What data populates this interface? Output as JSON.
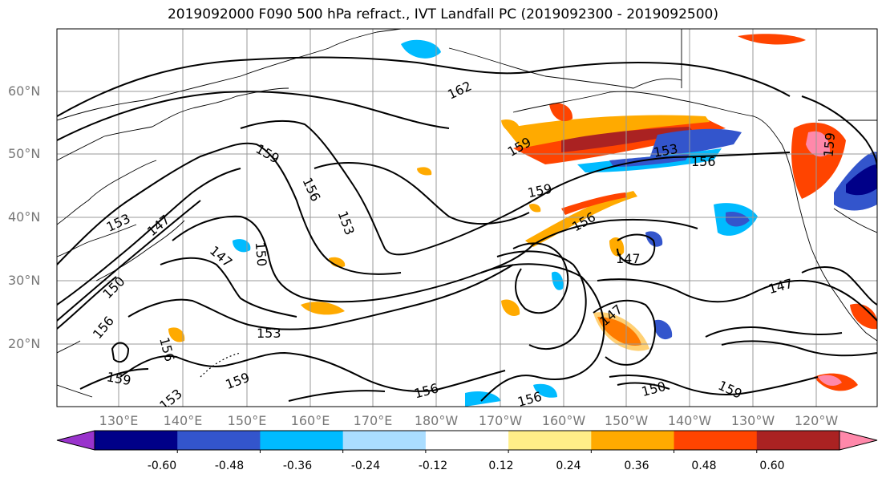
{
  "title": "2019092000 F090 500 hPa refract., IVT Landfall PC (2019092300 - 2019092500)",
  "lat_ticks": [
    "60°N",
    "50°N",
    "40°N",
    "30°N",
    "20°N"
  ],
  "lon_ticks": [
    "130°E",
    "140°E",
    "150°E",
    "160°E",
    "170°E",
    "180°W",
    "170°W",
    "160°W",
    "150°W",
    "140°W",
    "130°W",
    "120°W"
  ],
  "contour_labels": [
    "162",
    "159",
    "159",
    "159",
    "159",
    "159",
    "159",
    "159",
    "156",
    "156",
    "156",
    "156",
    "156",
    "156",
    "156",
    "153",
    "153",
    "153",
    "153",
    "153",
    "150",
    "150",
    "150",
    "147",
    "147",
    "147",
    "147",
    "147"
  ],
  "colorbar": {
    "tick_labels": [
      "-0.60",
      "-0.48",
      "-0.36",
      "-0.24",
      "-0.12",
      "0.12",
      "0.24",
      "0.36",
      "0.48",
      "0.60"
    ],
    "colors": [
      "#9933cc",
      "#000088",
      "#3355cc",
      "#00bbff",
      "#aaddff",
      "#ffffff",
      "#ffee88",
      "#ffaa00",
      "#ff4400",
      "#aa2222",
      "#ff88aa"
    ]
  }
}
